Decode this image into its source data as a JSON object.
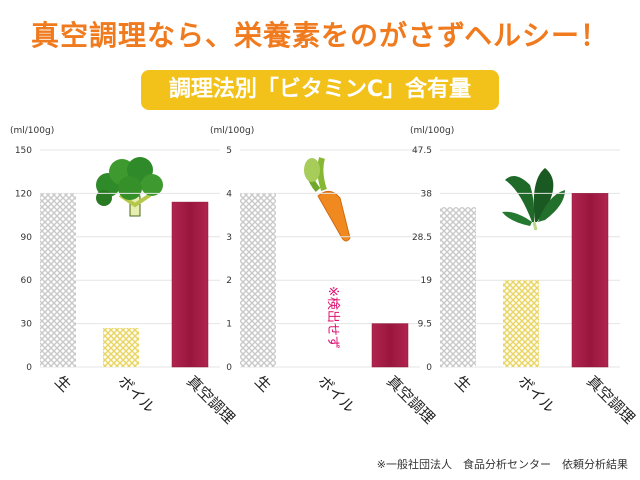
{
  "header": {
    "title": "真空調理なら、栄養素をのがさずヘルシー！",
    "subtitle": "調理法別「ビタミンC」含有量"
  },
  "colors": {
    "title": "#f07a1e",
    "subtitle_bg": "#f3c21a",
    "raw_bar": "#c9c9c9",
    "boil_bar": "#efe07a",
    "vacuum_bar": "#a01a40",
    "axis_text": "#333333",
    "note": "#e01070"
  },
  "chart_data": [
    {
      "type": "bar",
      "unit_label": "(ml/100g)",
      "categories": [
        "生",
        "ボイル",
        "真空調理"
      ],
      "values": [
        120,
        27,
        114
      ],
      "yticks": [
        0,
        30,
        60,
        90,
        120,
        150
      ],
      "ylim": [
        0,
        150
      ],
      "icon": "broccoli-icon"
    },
    {
      "type": "bar",
      "unit_label": "(ml/100g)",
      "categories": [
        "生",
        "ボイル",
        "真空調理"
      ],
      "values": [
        4,
        0,
        1
      ],
      "yticks": [
        0,
        1,
        2,
        3,
        4,
        5
      ],
      "ylim": [
        0,
        5
      ],
      "annotation": "※検出せず",
      "icon": "carrot-icon"
    },
    {
      "type": "bar",
      "unit_label": "(ml/100g)",
      "categories": [
        "生",
        "ボイル",
        "真空調理"
      ],
      "values": [
        35,
        19,
        38
      ],
      "yticks": [
        0,
        9.5,
        19,
        28.5,
        38,
        47.5
      ],
      "ylim": [
        0,
        47.5
      ],
      "icon": "spinach-icon"
    }
  ],
  "footer": {
    "source": "※一般社団法人　食品分析センター　依頼分析結果"
  }
}
